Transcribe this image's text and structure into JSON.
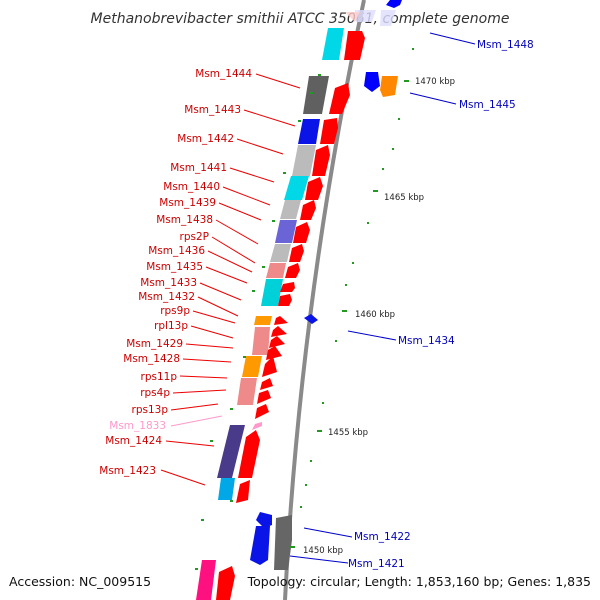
{
  "title": "Methanobrevibacter smithii ATCC 35061, complete genome",
  "footer": {
    "accession": "Accession: NC_009515",
    "topology": "Topology: circular; Length: 1,853,160 bp; Genes: 1,835"
  },
  "colors": {
    "forward_cds": "#ff0000",
    "reverse_cds": "#0000ff",
    "label_left": "#cc0000",
    "label_right": "#0000bb",
    "label_pseudo": "#ff99cc",
    "backbone": "#888888",
    "tick": "#229922"
  },
  "scale_labels": [
    "1470 kbp",
    "1465 kbp",
    "1460 kbp",
    "1455 kbp",
    "1450 kbp"
  ],
  "labels_left": [
    "Msm_1444",
    "Msm_1443",
    "Msm_1442",
    "Msm_1441",
    "Msm_1440",
    "Msm_1439",
    "Msm_1438",
    "rps2P",
    "Msm_1436",
    "Msm_1435",
    "Msm_1433",
    "Msm_1432",
    "rps9p",
    "rpl13p",
    "Msm_1429",
    "Msm_1428",
    "rps11p",
    "rps4p",
    "rps13p",
    "Msm_1833",
    "Msm_1424",
    "Msm_1423"
  ],
  "labels_right": [
    "Msm_1448",
    "Msm_1445",
    "Msm_1434",
    "Msm_1422",
    "Msm_1421"
  ]
}
